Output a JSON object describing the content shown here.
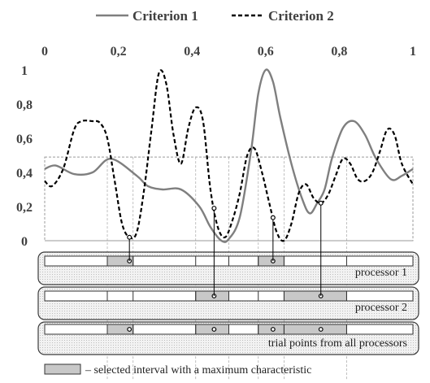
{
  "chart_data": {
    "type": "line",
    "x_ticks": [
      "0",
      "0,2",
      "0,4",
      "0,6",
      "0,8",
      "1"
    ],
    "y_ticks": [
      "0",
      "0,2",
      "0,4",
      "0,6",
      "0,8",
      "1"
    ],
    "xlim": [
      0,
      1
    ],
    "ylim": [
      0,
      1
    ],
    "threshold": 0.49,
    "series": [
      {
        "name": "Criterion 1",
        "color": "#7f7f7f",
        "dash": "solid",
        "x": [
          0,
          0.03,
          0.08,
          0.13,
          0.18,
          0.25,
          0.28,
          0.32,
          0.37,
          0.42,
          0.45,
          0.48,
          0.5,
          0.53,
          0.56,
          0.58,
          0.6,
          0.62,
          0.64,
          0.67,
          0.7,
          0.72,
          0.74,
          0.76,
          0.78,
          0.81,
          0.84,
          0.87,
          0.9,
          0.94,
          0.97,
          1
        ],
        "y": [
          0.42,
          0.44,
          0.39,
          0.4,
          0.48,
          0.38,
          0.32,
          0.3,
          0.3,
          0.2,
          0.08,
          0.0,
          0.01,
          0.14,
          0.52,
          0.86,
          1.0,
          0.93,
          0.72,
          0.45,
          0.24,
          0.16,
          0.22,
          0.3,
          0.48,
          0.66,
          0.7,
          0.62,
          0.48,
          0.36,
          0.38,
          0.42
        ]
      },
      {
        "name": "Criterion 2",
        "color": "#000000",
        "dash": "dashed",
        "x": [
          0,
          0.02,
          0.05,
          0.08,
          0.1,
          0.13,
          0.15,
          0.17,
          0.19,
          0.21,
          0.23,
          0.25,
          0.27,
          0.29,
          0.31,
          0.33,
          0.35,
          0.37,
          0.39,
          0.41,
          0.43,
          0.45,
          0.47,
          0.49,
          0.51,
          0.53,
          0.55,
          0.57,
          0.59,
          0.61,
          0.63,
          0.65,
          0.67,
          0.69,
          0.71,
          0.73,
          0.75,
          0.77,
          0.79,
          0.81,
          0.83,
          0.85,
          0.87,
          0.89,
          0.91,
          0.93,
          0.95,
          0.97,
          1
        ],
        "y": [
          0.35,
          0.32,
          0.42,
          0.65,
          0.7,
          0.7,
          0.69,
          0.6,
          0.35,
          0.1,
          0.02,
          0.05,
          0.3,
          0.65,
          0.98,
          0.92,
          0.62,
          0.45,
          0.66,
          0.78,
          0.7,
          0.3,
          0.08,
          0.02,
          0.12,
          0.28,
          0.5,
          0.54,
          0.4,
          0.22,
          0.05,
          0.0,
          0.1,
          0.28,
          0.33,
          0.25,
          0.22,
          0.27,
          0.38,
          0.48,
          0.45,
          0.36,
          0.35,
          0.4,
          0.52,
          0.65,
          0.62,
          0.45,
          0.33
        ]
      }
    ],
    "bands": [
      {
        "label": "processor 1",
        "divisions": [
          0,
          0.17,
          0.24,
          0.41,
          0.5,
          0.58,
          0.65,
          0.82,
          1
        ],
        "selected": [
          [
            0.17,
            0.24
          ],
          [
            0.58,
            0.65
          ]
        ],
        "points": [
          0.23,
          0.62
        ]
      },
      {
        "label": "processor 2",
        "divisions": [
          0,
          0.17,
          0.24,
          0.41,
          0.5,
          0.58,
          0.65,
          0.82,
          1
        ],
        "selected": [
          [
            0.41,
            0.5
          ],
          [
            0.65,
            0.82
          ]
        ],
        "points": [
          0.46,
          0.75
        ]
      },
      {
        "label": "trial points from all processors",
        "divisions": [
          0,
          0.17,
          0.24,
          0.41,
          0.5,
          0.58,
          0.65,
          0.82,
          1
        ],
        "selected": [
          [
            0.17,
            0.24
          ],
          [
            0.41,
            0.5
          ],
          [
            0.58,
            0.65
          ],
          [
            0.65,
            0.82
          ]
        ],
        "points": [
          0.23,
          0.46,
          0.62,
          0.75
        ]
      }
    ],
    "trial_points": [
      0.23,
      0.46,
      0.62,
      0.75
    ],
    "caption": "– selected interval with a maximum characteristic"
  }
}
